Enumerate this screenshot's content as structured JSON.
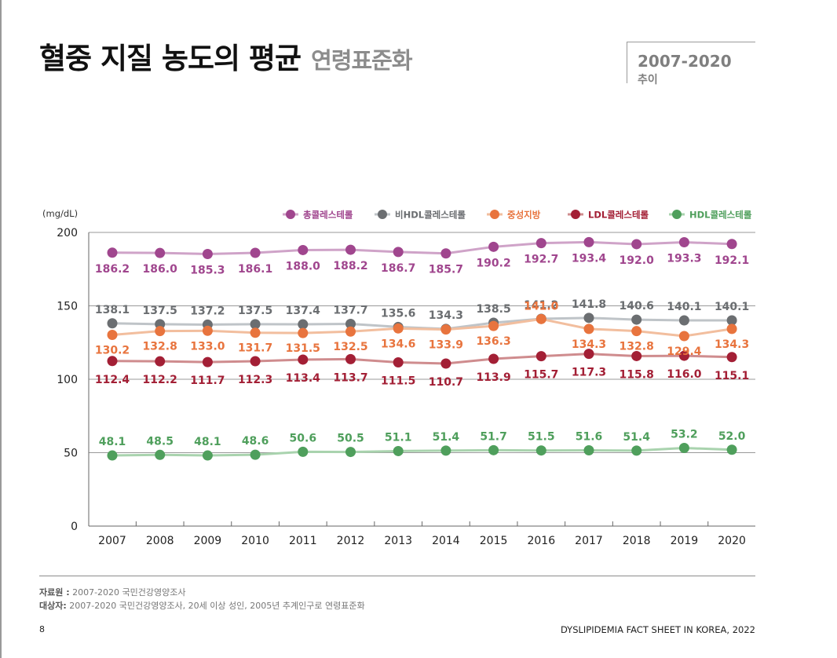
{
  "header": {
    "title": "혈중 지질 농도의 평균",
    "subtitle": "연령표준화",
    "period": "2007-2020",
    "period_label": "추이"
  },
  "chart_data": {
    "type": "line",
    "ylabel": "(mg/dL)",
    "ylim": [
      0,
      200
    ],
    "yticks": [
      0,
      50,
      100,
      150,
      200
    ],
    "grid": true,
    "legend_position": "top-right",
    "categories": [
      "2007",
      "2008",
      "2009",
      "2010",
      "2011",
      "2012",
      "2013",
      "2014",
      "2015",
      "2016",
      "2017",
      "2018",
      "2019",
      "2020"
    ],
    "series": [
      {
        "name": "총콜레스테롤",
        "color": "#a0468e",
        "line_color": "#cfa3c8",
        "values": [
          186.2,
          186.0,
          185.3,
          186.1,
          188.0,
          188.2,
          186.7,
          185.7,
          190.2,
          192.7,
          193.4,
          192.0,
          193.3,
          192.1
        ],
        "labels": [
          "186.2",
          "186.0",
          "185.3",
          "186.1",
          "188.0",
          "188.2",
          "186.7",
          "185.7",
          "190.2",
          "192.7",
          "193.4",
          "192.0",
          "193.3",
          "192.1"
        ]
      },
      {
        "name": "비HDL콜레스테롤",
        "color": "#6b6e71",
        "line_color": "#bfc4c8",
        "values": [
          138.1,
          137.5,
          137.2,
          137.5,
          137.4,
          137.7,
          135.6,
          134.3,
          138.5,
          141.2,
          141.8,
          140.6,
          140.1,
          140.1
        ],
        "labels": [
          "138.1",
          "137.5",
          "137.2",
          "137.5",
          "137.4",
          "137.7",
          "135.6",
          "134.3",
          "138.5",
          "141.2",
          "141.8",
          "140.6",
          "140.1",
          "140.1"
        ]
      },
      {
        "name": "중성지방",
        "color": "#e8743e",
        "line_color": "#f2be9e",
        "values": [
          130.2,
          132.8,
          133.0,
          131.7,
          131.5,
          132.5,
          134.6,
          133.9,
          136.3,
          141.0,
          134.3,
          132.8,
          129.4,
          134.3
        ],
        "labels": [
          "130.2",
          "132.8",
          "133.0",
          "131.7",
          "131.5",
          "132.5",
          "134.6",
          "133.9",
          "136.3",
          "141.0",
          "134.3",
          "132.8",
          "129.4",
          "134.3"
        ]
      },
      {
        "name": "LDL콜레스테롤",
        "color": "#a31f35",
        "line_color": "#cf8c8e",
        "values": [
          112.4,
          112.2,
          111.7,
          112.3,
          113.4,
          113.7,
          111.5,
          110.7,
          113.9,
          115.7,
          117.3,
          115.8,
          116.0,
          115.1
        ],
        "labels": [
          "112.4",
          "112.2",
          "111.7",
          "112.3",
          "113.4",
          "113.7",
          "111.5",
          "110.7",
          "113.9",
          "115.7",
          "117.3",
          "115.8",
          "116.0",
          "115.1"
        ]
      },
      {
        "name": "HDL콜레스테롤",
        "color": "#4f9f5c",
        "line_color": "#a9d3ae",
        "values": [
          48.1,
          48.5,
          48.1,
          48.6,
          50.6,
          50.5,
          51.1,
          51.4,
          51.7,
          51.5,
          51.6,
          51.4,
          53.2,
          52.0
        ],
        "labels": [
          "48.1",
          "48.5",
          "48.1",
          "48.6",
          "50.6",
          "50.5",
          "51.1",
          "51.4",
          "51.7",
          "51.5",
          "51.6",
          "51.4",
          "53.2",
          "52.0"
        ]
      }
    ]
  },
  "footer": {
    "source_label": "자료원 :",
    "source_text": "2007-2020 국민건강영양조사",
    "subject_label": "대상자:",
    "subject_text": "2007-2020 국민건강영양조사, 20세 이상 성인, 2005년 추계인구로 연령표준화",
    "page_number": "8",
    "report_title": "DYSLIPIDEMIA FACT SHEET IN KOREA, 2022"
  }
}
